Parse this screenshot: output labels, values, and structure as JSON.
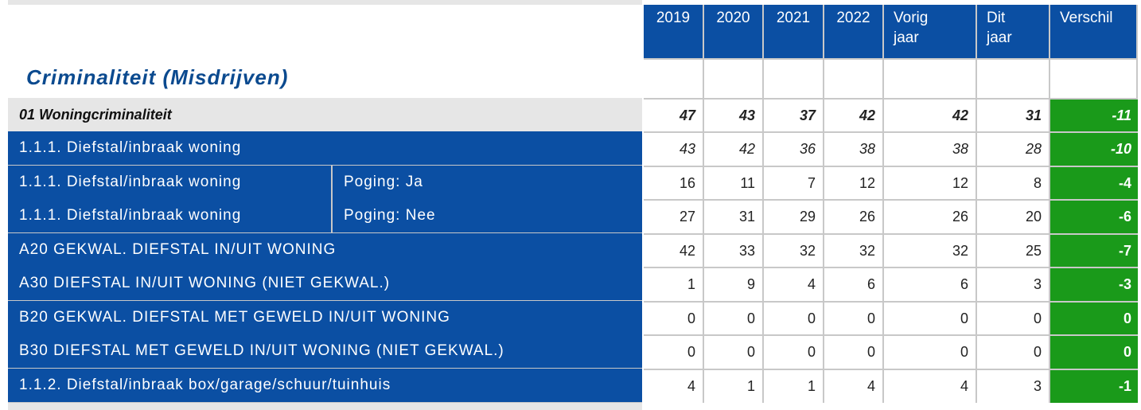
{
  "title": "Criminaliteit (Misdrijven)",
  "headers": [
    "2019",
    "2020",
    "2021",
    "2022",
    "Vorig jaar",
    "Dit jaar",
    "Verschil"
  ],
  "colors": {
    "header_blue": "#0b4fa3",
    "title_blue": "#0b4a8f",
    "diff_green": "#1a9a1a",
    "group_gray": "#e6e6e6"
  },
  "rows": [
    {
      "label": "01 Woningcriminaliteit",
      "sublabel": "",
      "values": [
        "47",
        "43",
        "37",
        "42",
        "42",
        "31"
      ],
      "diff": "-11"
    },
    {
      "label": "1.1.1. Diefstal/inbraak woning",
      "sublabel": "",
      "values": [
        "43",
        "42",
        "36",
        "38",
        "38",
        "28"
      ],
      "diff": "-10"
    },
    {
      "label": "1.1.1. Diefstal/inbraak woning",
      "sublabel": "Poging: Ja",
      "values": [
        "16",
        "11",
        "7",
        "12",
        "12",
        "8"
      ],
      "diff": "-4"
    },
    {
      "label": "1.1.1. Diefstal/inbraak woning",
      "sublabel": "Poging: Nee",
      "values": [
        "27",
        "31",
        "29",
        "26",
        "26",
        "20"
      ],
      "diff": "-6"
    },
    {
      "label": "A20 GEKWAL. DIEFSTAL IN/UIT WONING",
      "sublabel": "",
      "values": [
        "42",
        "33",
        "32",
        "32",
        "32",
        "25"
      ],
      "diff": "-7"
    },
    {
      "label": "A30 DIEFSTAL IN/UIT WONING (NIET GEKWAL.)",
      "sublabel": "",
      "values": [
        "1",
        "9",
        "4",
        "6",
        "6",
        "3"
      ],
      "diff": "-3"
    },
    {
      "label": "B20 GEKWAL. DIEFSTAL MET GEWELD IN/UIT WONING",
      "sublabel": "",
      "values": [
        "0",
        "0",
        "0",
        "0",
        "0",
        "0"
      ],
      "diff": "0"
    },
    {
      "label": "B30 DIEFSTAL MET GEWELD IN/UIT WONING (NIET GEKWAL.)",
      "sublabel": "",
      "values": [
        "0",
        "0",
        "0",
        "0",
        "0",
        "0"
      ],
      "diff": "0"
    },
    {
      "label": "1.1.2. Diefstal/inbraak box/garage/schuur/tuinhuis",
      "sublabel": "",
      "values": [
        "4",
        "1",
        "1",
        "4",
        "4",
        "3"
      ],
      "diff": "-1"
    }
  ]
}
